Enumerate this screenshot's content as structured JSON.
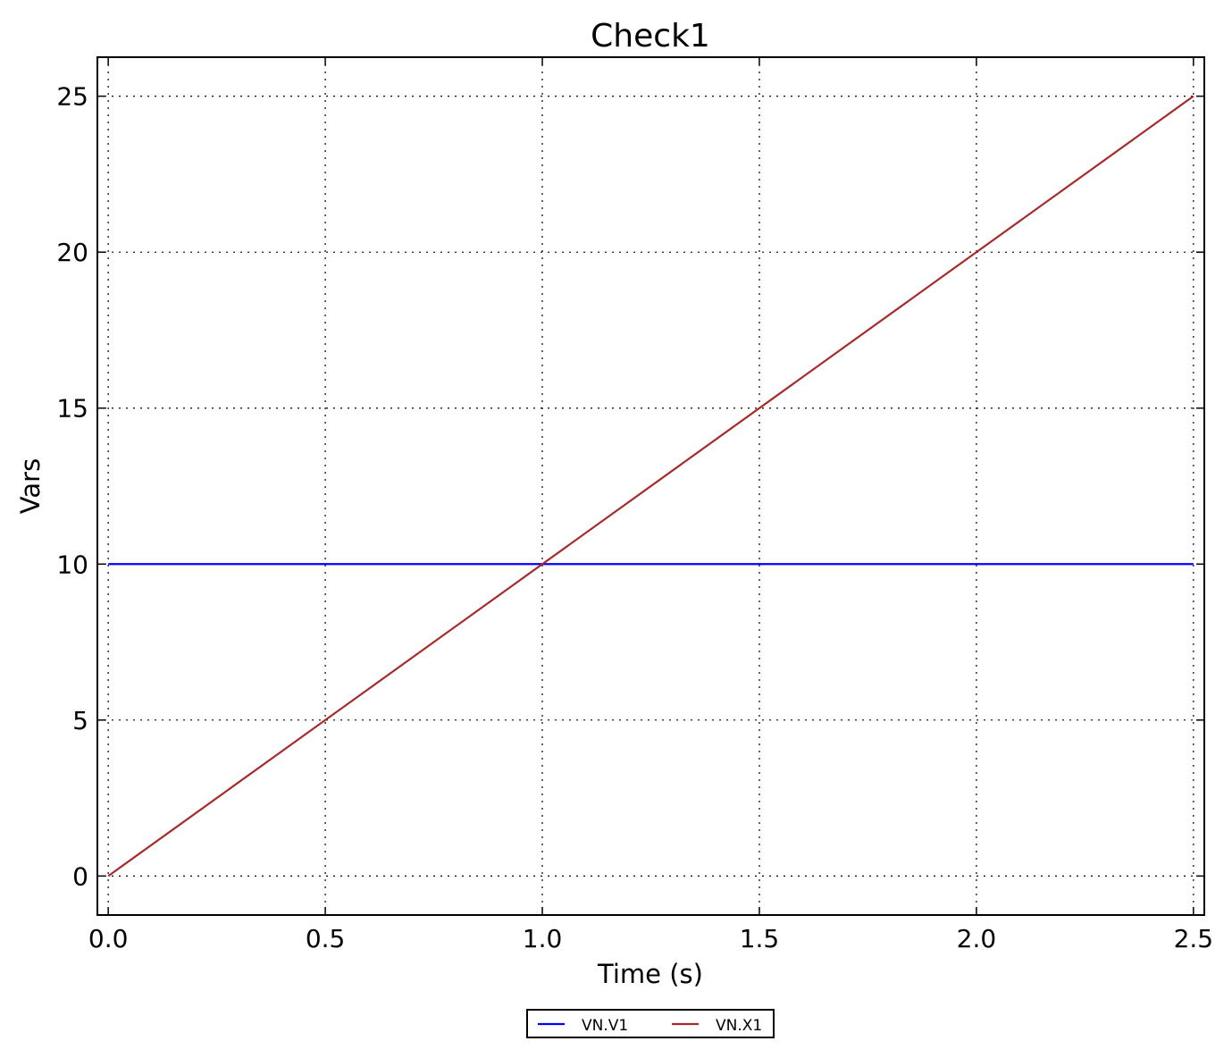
{
  "chart_data": {
    "type": "line",
    "title": "Check1",
    "xlabel": "Time (s)",
    "ylabel": "Vars",
    "xlim": [
      -0.025,
      2.525
    ],
    "ylim": [
      -1.25,
      26.25
    ],
    "xticks": [
      0.0,
      0.5,
      1.0,
      1.5,
      2.0,
      2.5
    ],
    "xtick_labels": [
      "0.0",
      "0.5",
      "1.0",
      "1.5",
      "2.0",
      "2.5"
    ],
    "yticks": [
      0,
      5,
      10,
      15,
      20,
      25
    ],
    "ytick_labels": [
      "0",
      "5",
      "10",
      "15",
      "20",
      "25"
    ],
    "grid": true,
    "legend_placement": "bottom-center, below axes",
    "series": [
      {
        "name": "VN.V1",
        "color": "#0000ff",
        "x": [
          0,
          2.5
        ],
        "y": [
          10,
          10
        ]
      },
      {
        "name": "VN.X1",
        "color": "#a52a2a",
        "x": [
          0,
          2.5
        ],
        "y": [
          0,
          25
        ]
      }
    ]
  }
}
